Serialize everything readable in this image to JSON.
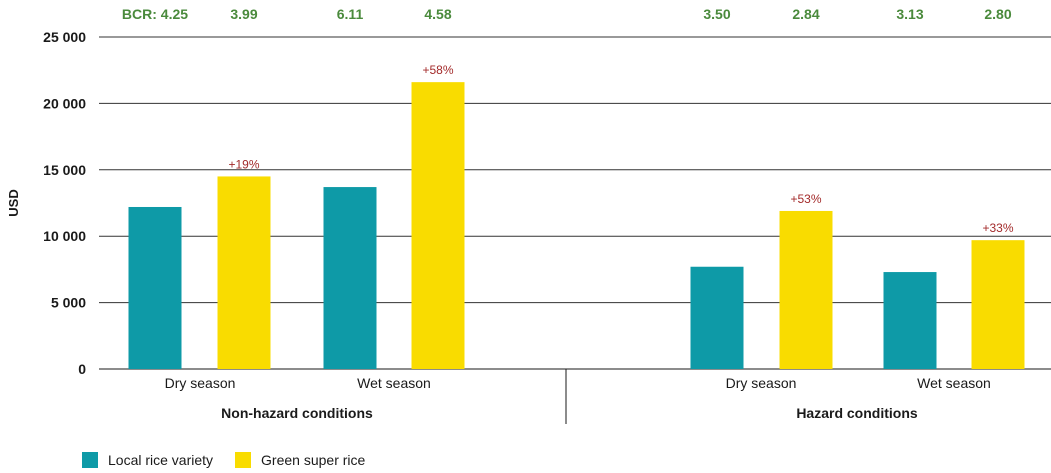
{
  "chart_data": {
    "type": "bar",
    "ylabel": "USD",
    "ylim": [
      0,
      25000
    ],
    "yticks": [
      "0",
      "5 000",
      "10 000",
      "15 000",
      "20 000",
      "25 000"
    ],
    "ytick_values": [
      0,
      5000,
      10000,
      15000,
      20000,
      25000
    ],
    "grid": true,
    "legend_position": "bottom-left",
    "groups": [
      {
        "name": "Non-hazard conditions",
        "categories": [
          {
            "label": "Dry season",
            "local": 12200,
            "green": 14500,
            "change": "+19%",
            "bcr_local": "BCR: 4.25",
            "bcr_green": "3.99"
          },
          {
            "label": "Wet season",
            "local": 13700,
            "green": 21600,
            "change": "+58%",
            "bcr_local": "6.11",
            "bcr_green": "4.58"
          }
        ]
      },
      {
        "name": "Hazard conditions",
        "categories": [
          {
            "label": "Dry season",
            "local": 7700,
            "green": 11900,
            "change": "+53%",
            "bcr_local": "3.50",
            "bcr_green": "2.84"
          },
          {
            "label": "Wet season",
            "local": 7300,
            "green": 9700,
            "change": "+33%",
            "bcr_local": "3.13",
            "bcr_green": "2.80"
          }
        ]
      }
    ],
    "series": [
      {
        "name": "Local rice variety",
        "key": "local",
        "color": "#0e9aa7"
      },
      {
        "name": "Green super rice",
        "key": "green",
        "color": "#f9dc00"
      }
    ]
  }
}
